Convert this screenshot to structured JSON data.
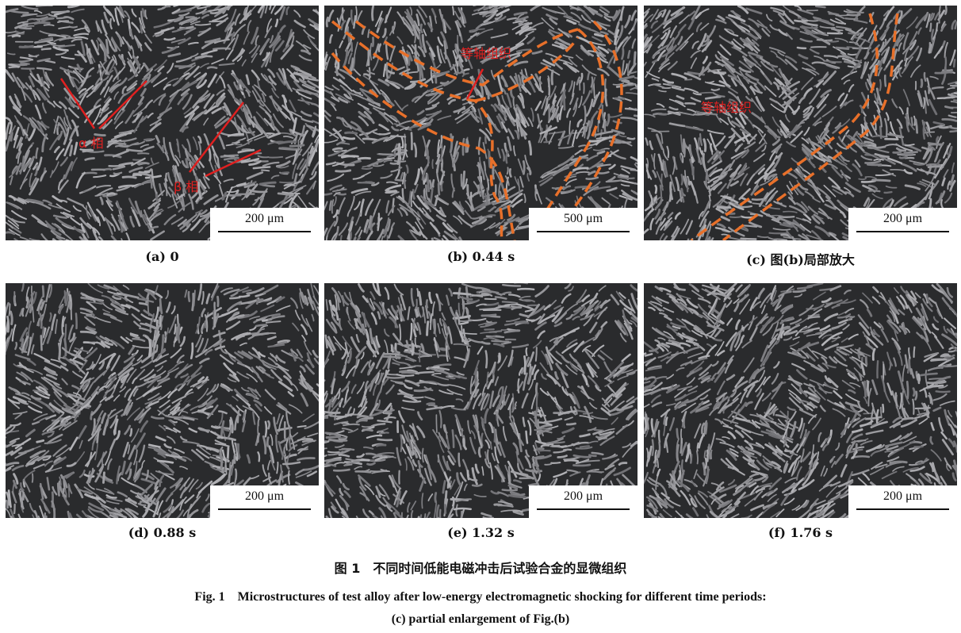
{
  "panels": [
    {
      "caption": "(a) 0",
      "scale": "200 μm"
    },
    {
      "caption": "(b) 0.44 s",
      "scale": "500 μm"
    },
    {
      "caption": "(c) 图(b)局部放大",
      "scale": "200 μm"
    },
    {
      "caption": "(d) 0.88 s",
      "scale": "200 μm"
    },
    {
      "caption": "(e) 1.32 s",
      "scale": "200 μm"
    },
    {
      "caption": "(f) 1.76 s",
      "scale": "200 μm"
    }
  ],
  "annotations": {
    "alpha_phase": "α 相",
    "beta_phase": "β 相",
    "equiaxed_b": "等轴组织",
    "equiaxed_c": "等轴组织"
  },
  "colors": {
    "annotation": "#e02020",
    "boundary": "#e8702a"
  },
  "figure": {
    "title_cn": "图 1　不同时间低能电磁冲击后试验合金的显微组织",
    "title_en_line1": "Fig. 1　Microstructures of test alloy after low-energy electromagnetic shocking for different time periods:",
    "title_en_line2": "(c) partial enlargement of Fig.(b)"
  }
}
